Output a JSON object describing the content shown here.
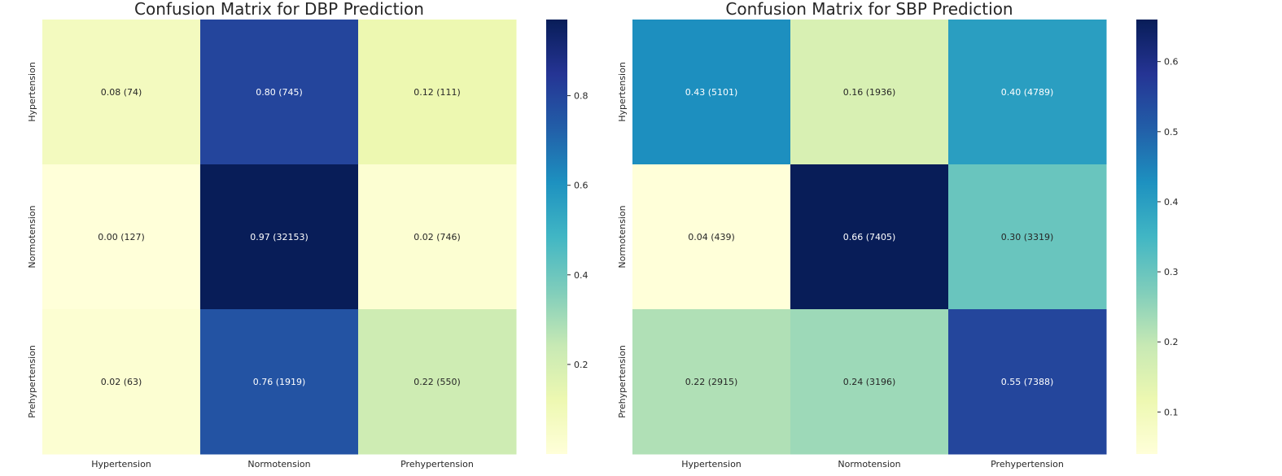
{
  "chart_data": [
    {
      "type": "heatmap",
      "title": "Confusion Matrix for DBP Prediction",
      "xlabel": "",
      "ylabel": "",
      "x_categories": [
        "Hypertension",
        "Normotension",
        "Prehypertension"
      ],
      "y_categories": [
        "Hypertension",
        "Normotension",
        "Prehypertension"
      ],
      "values": [
        [
          0.08,
          0.8,
          0.12
        ],
        [
          0.0,
          0.97,
          0.02
        ],
        [
          0.02,
          0.76,
          0.22
        ]
      ],
      "counts": [
        [
          74,
          745,
          111
        ],
        [
          127,
          32153,
          746
        ],
        [
          63,
          1919,
          550
        ]
      ],
      "annotations": [
        [
          "0.08 (74)",
          "0.80 (745)",
          "0.12 (111)"
        ],
        [
          "0.00 (127)",
          "0.97 (32153)",
          "0.02 (746)"
        ],
        [
          "0.02 (63)",
          "0.76 (1919)",
          "0.22 (550)"
        ]
      ],
      "colormap": "YlGnBu",
      "colorbar": {
        "range": [
          0.0,
          0.97
        ],
        "ticks": [
          0.2,
          0.4,
          0.6,
          0.8
        ],
        "tick_labels": [
          "0.2",
          "0.4",
          "0.6",
          "0.8"
        ]
      }
    },
    {
      "type": "heatmap",
      "title": "Confusion Matrix for SBP Prediction",
      "xlabel": "",
      "ylabel": "",
      "x_categories": [
        "Hypertension",
        "Normotension",
        "Prehypertension"
      ],
      "y_categories": [
        "Hypertension",
        "Normotension",
        "Prehypertension"
      ],
      "values": [
        [
          0.43,
          0.16,
          0.4
        ],
        [
          0.04,
          0.66,
          0.3
        ],
        [
          0.22,
          0.24,
          0.55
        ]
      ],
      "counts": [
        [
          5101,
          1936,
          4789
        ],
        [
          439,
          7405,
          3319
        ],
        [
          2915,
          3196,
          7388
        ]
      ],
      "annotations": [
        [
          "0.43 (5101)",
          "0.16 (1936)",
          "0.40 (4789)"
        ],
        [
          "0.04 (439)",
          "0.66 (7405)",
          "0.30 (3319)"
        ],
        [
          "0.22 (2915)",
          "0.24 (3196)",
          "0.55 (7388)"
        ]
      ],
      "colormap": "YlGnBu",
      "colorbar": {
        "range": [
          0.04,
          0.66
        ],
        "ticks": [
          0.1,
          0.2,
          0.3,
          0.4,
          0.5,
          0.6
        ],
        "tick_labels": [
          "0.1",
          "0.2",
          "0.3",
          "0.4",
          "0.5",
          "0.6"
        ]
      }
    }
  ]
}
